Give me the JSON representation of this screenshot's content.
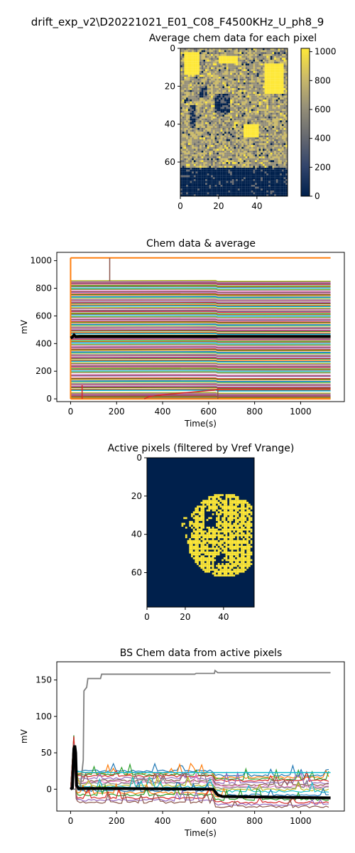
{
  "figure": {
    "suptitle": "drift_exp_v2\\D20221021_E01_C08_F4500KHz_U_ph8_9"
  },
  "chart_data": [
    {
      "type": "heatmap",
      "title": "Average chem data for each pixel",
      "colormap": "cividis",
      "colormap_stops": [
        "#00204c",
        "#31446b",
        "#666970",
        "#958f78",
        "#cbba69",
        "#fee838"
      ],
      "x_ticks": [
        "0",
        "20",
        "40"
      ],
      "y_ticks": [
        "0",
        "20",
        "40",
        "60"
      ],
      "x_range": [
        0,
        56
      ],
      "y_range": [
        0,
        78
      ],
      "colorbar_ticks": [
        "0",
        "200",
        "400",
        "600",
        "800",
        "1000"
      ],
      "colorbar_range": [
        0,
        1023
      ],
      "description_regions": {
        "dark_band_rows": [
          63,
          78
        ],
        "saturated_blobs": [
          [
            2,
            2,
            8,
            12
          ],
          [
            33,
            40,
            8,
            7
          ],
          [
            44,
            8,
            10,
            16
          ],
          [
            20,
            4,
            10,
            4
          ]
        ],
        "dark_blobs": [
          [
            18,
            24,
            8,
            10
          ],
          [
            5,
            30,
            3,
            12
          ],
          [
            10,
            20,
            4,
            6
          ]
        ]
      }
    },
    {
      "type": "line",
      "title": "Chem data & average",
      "xlabel": "Time(s)",
      "ylabel": "mV",
      "xlim": [
        -60,
        1190
      ],
      "ylim": [
        -20,
        1060
      ],
      "x_ticks": [
        0,
        200,
        400,
        600,
        800,
        1000
      ],
      "y_ticks": [
        0,
        200,
        400,
        600,
        800,
        1000
      ],
      "x_max": 1130,
      "step_time": 630,
      "pixel_band_levels_mV": [
        5,
        20,
        35,
        60,
        80,
        100,
        120,
        140,
        165,
        190,
        210,
        230,
        250,
        270,
        290,
        310,
        330,
        350,
        370,
        390,
        410,
        430,
        450,
        470,
        490,
        510,
        530,
        550,
        570,
        590,
        610,
        630,
        650,
        670,
        690,
        710,
        730,
        750,
        770,
        790,
        810,
        830,
        845
      ],
      "saturated_levels_mV": [
        1020,
        0
      ],
      "average_series": {
        "name": "average",
        "x": [
          0,
          8,
          15,
          22,
          40,
          100,
          300,
          600,
          630,
          700,
          900,
          1130
        ],
        "y": [
          440,
          447,
          462,
          450,
          452,
          452,
          452,
          452,
          452,
          452,
          452,
          452
        ]
      },
      "red_series": {
        "x": [
          320,
          340,
          400,
          500,
          600,
          625,
          640,
          1130
        ],
        "y": [
          0,
          15,
          30,
          45,
          60,
          62,
          70,
          72
        ]
      }
    },
    {
      "type": "heatmap",
      "title": "Active pixels (filtered by Vref Vrange)",
      "colormap": "cividis",
      "active_color": "#fee838",
      "inactive_color": "#00204c",
      "x_ticks": [
        "0",
        "20",
        "40"
      ],
      "y_ticks": [
        "0",
        "20",
        "40",
        "60"
      ],
      "x_range": [
        0,
        56
      ],
      "y_range": [
        0,
        78
      ],
      "active_ellipse": {
        "cx": 40,
        "cy": 40,
        "rx": 20,
        "ry": 22
      },
      "holes": [
        [
          30,
          28,
          6,
          8
        ],
        [
          18,
          30,
          6,
          12
        ],
        [
          35,
          50,
          6,
          6
        ]
      ]
    },
    {
      "type": "line",
      "title": "BS Chem data from active pixels",
      "xlabel": "Time(s)",
      "ylabel": "mV",
      "xlim": [
        -60,
        1190
      ],
      "ylim": [
        -30,
        175
      ],
      "x_ticks": [
        0,
        200,
        400,
        600,
        800,
        1000
      ],
      "y_ticks": [
        0,
        50,
        100,
        150
      ],
      "gray_series": {
        "x": [
          0,
          40,
          45,
          55,
          58,
          70,
          75,
          130,
          135,
          540,
          545,
          625,
          628,
          640,
          1130
        ],
        "y": [
          0,
          0,
          10,
          40,
          135,
          140,
          152,
          152,
          158,
          158,
          159,
          159,
          163,
          160,
          160
        ]
      },
      "average_series": {
        "name": "average",
        "x": [
          0,
          8,
          14,
          18,
          22,
          26,
          35,
          60,
          200,
          620,
          640,
          660,
          1130
        ],
        "y": [
          0,
          2,
          55,
          60,
          50,
          5,
          1,
          1,
          1,
          0,
          -8,
          -10,
          -12
        ]
      },
      "pixel_band_levels_mV": [
        25,
        22,
        20,
        18,
        15,
        12,
        10,
        8,
        5,
        3,
        -2,
        -5,
        -8,
        -12,
        -15,
        -18
      ]
    }
  ]
}
